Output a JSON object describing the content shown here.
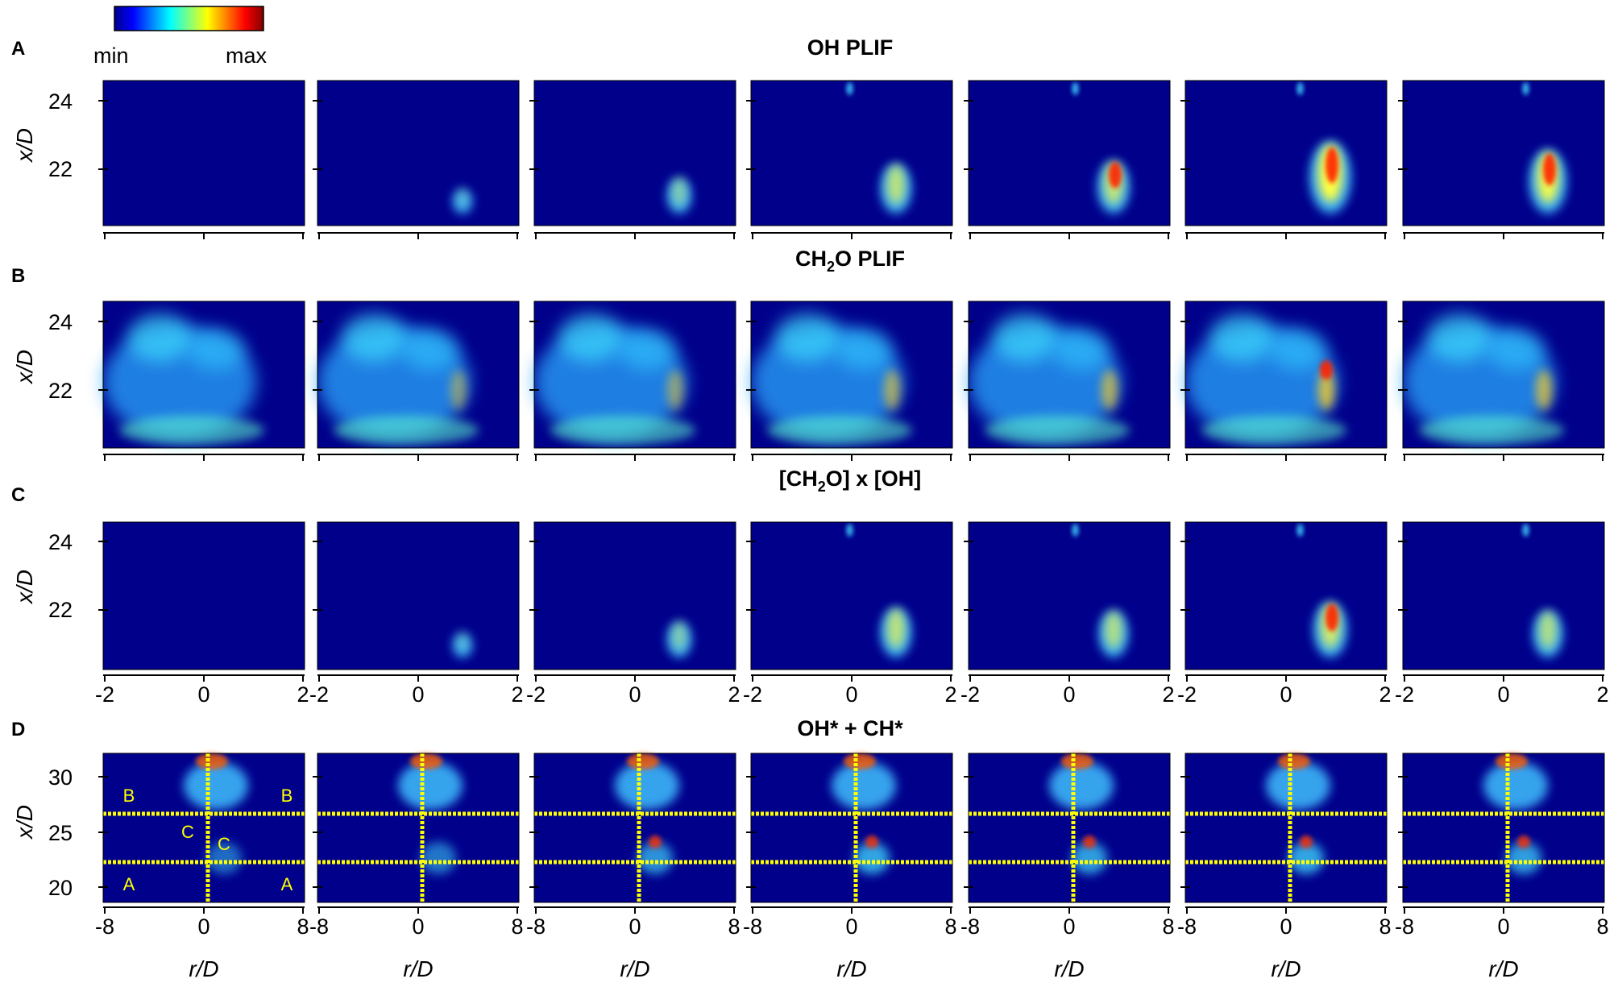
{
  "colorbar": {
    "min_label": "min",
    "max_label": "max",
    "stops": [
      "#00008f",
      "#0000ff",
      "#0080ff",
      "#00ffff",
      "#80ff80",
      "#ffff00",
      "#ff8000",
      "#ff0000",
      "#800000"
    ]
  },
  "colors": {
    "panel_background": "#00008b",
    "overlay_lines": "#ffff00"
  },
  "rows": [
    {
      "letter": "A",
      "title": "OH PLIF",
      "ylabel": "x/D",
      "yticks": [
        "24",
        "22"
      ],
      "xticks": [],
      "xlabel": ""
    },
    {
      "letter": "B",
      "title": "CH2O PLIF",
      "ylabel": "x/D",
      "yticks": [
        "24",
        "22"
      ],
      "xticks": [],
      "xlabel": ""
    },
    {
      "letter": "C",
      "title": "[CH2O] x [OH]",
      "ylabel": "x/D",
      "yticks": [
        "24",
        "22"
      ],
      "xticks": [
        "-2",
        "0",
        "2"
      ],
      "xlabel": ""
    },
    {
      "letter": "D",
      "title": "OH* + CH*",
      "ylabel": "x/D",
      "yticks": [
        "30",
        "25",
        "20"
      ],
      "xticks": [
        "-8",
        "0",
        "8"
      ],
      "xlabel": "r/D"
    }
  ],
  "region_labels": {
    "B_left": "B",
    "B_right": "B",
    "C_left": "C",
    "C_right": "C",
    "A_left": "A",
    "A_right": "A"
  },
  "frames": [
    {
      "oh": 0.0,
      "ch2o": 0.35,
      "product": 0.0,
      "chemi": 0.55
    },
    {
      "oh": 0.15,
      "ch2o": 0.45,
      "product": 0.15,
      "chemi": 0.6
    },
    {
      "oh": 0.35,
      "ch2o": 0.5,
      "product": 0.35,
      "chemi": 0.75
    },
    {
      "oh": 0.6,
      "ch2o": 0.6,
      "product": 0.6,
      "chemi": 0.85
    },
    {
      "oh": 0.65,
      "ch2o": 0.65,
      "product": 0.55,
      "chemi": 0.8
    },
    {
      "oh": 1.0,
      "ch2o": 0.8,
      "product": 0.7,
      "chemi": 0.85
    },
    {
      "oh": 0.85,
      "ch2o": 0.7,
      "product": 0.55,
      "chemi": 0.8
    }
  ]
}
